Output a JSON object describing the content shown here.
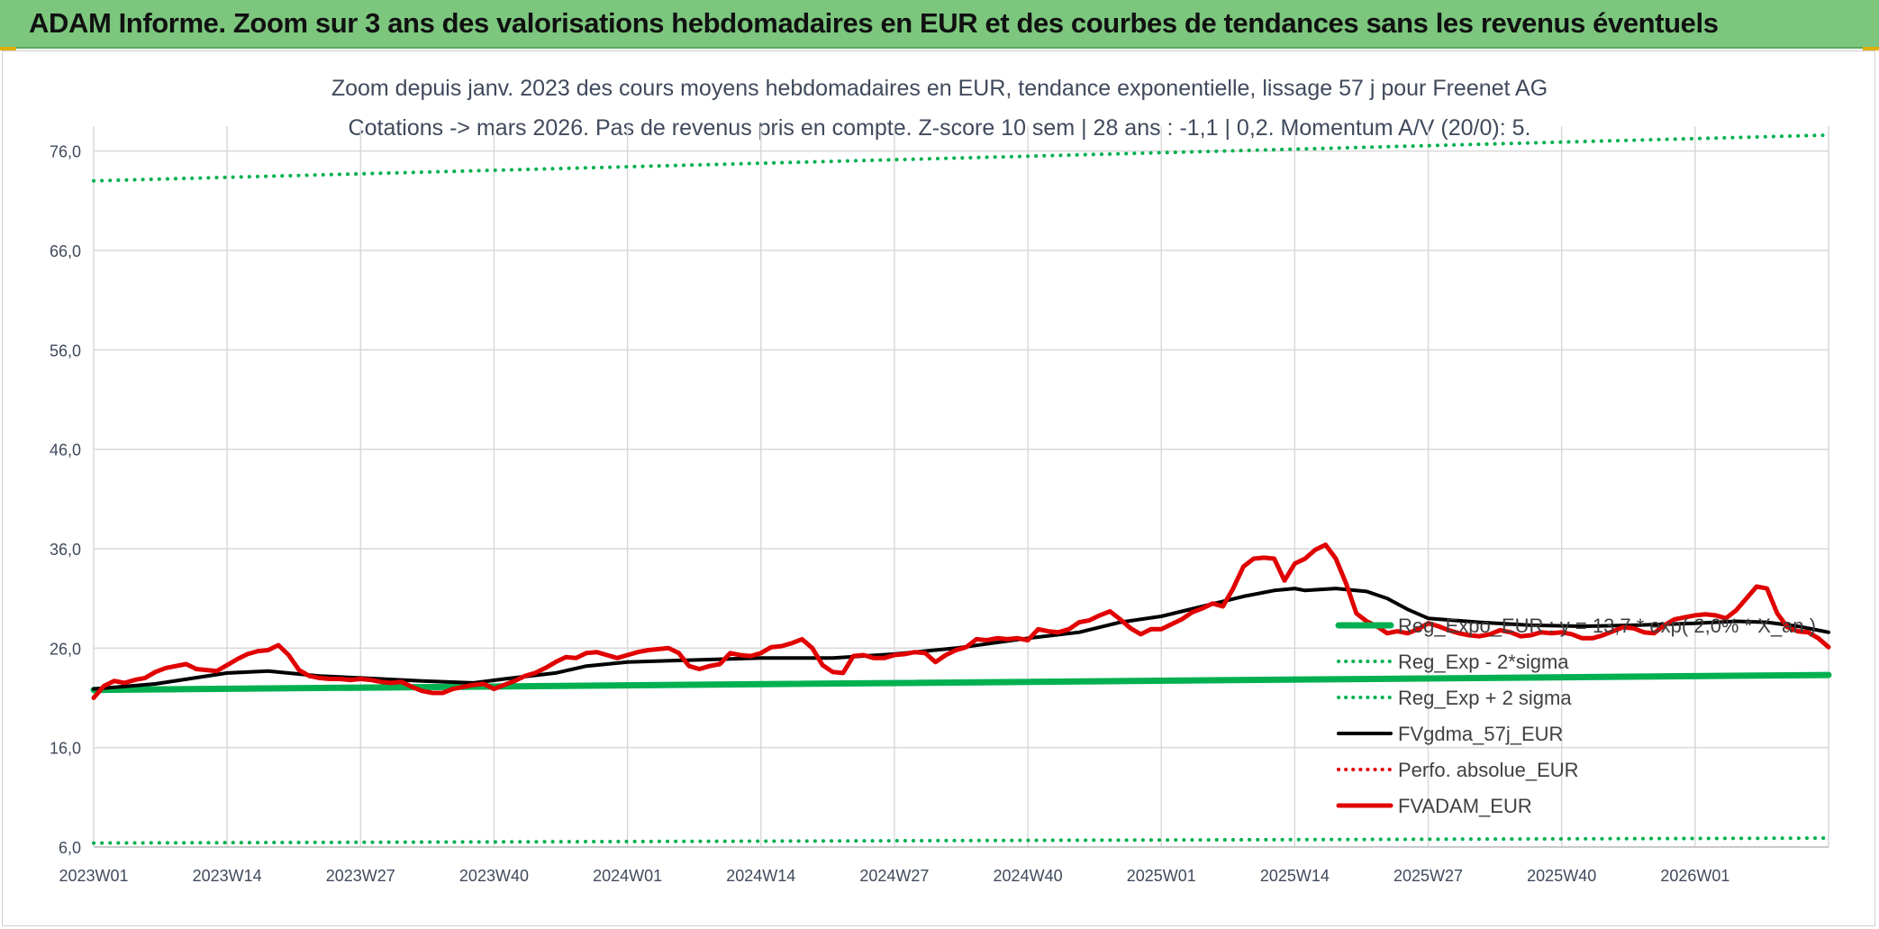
{
  "header": {
    "title": "ADAM Informe. Zoom sur 3 ans des valorisations hebdomadaires en EUR et des courbes de tendances sans les revenus éventuels"
  },
  "chart_data": {
    "type": "line",
    "title": "Zoom depuis janv. 2023 des cours moyens hebdomadaires en EUR, tendance exponentielle, lissage 57 j pour Freenet AG",
    "subtitle": "Cotations -> mars 2026. Pas de revenus pris en compte. Z-score 10 sem | 28 ans : -1,1 | 0,2. Momentum A/V (20/0): 5.",
    "xlabel": "",
    "ylabel": "",
    "ylim": [
      6.0,
      78.5
    ],
    "y_ticks": [
      "6,0",
      "16,0",
      "26,0",
      "36,0",
      "46,0",
      "56,0",
      "66,0",
      "76,0"
    ],
    "x_ticks": [
      "2023W01",
      "2023W14",
      "2023W27",
      "2023W40",
      "2024W01",
      "2024W14",
      "2024W27",
      "2024W40",
      "2025W01",
      "2025W14",
      "2025W27",
      "2025W40",
      "2026W01"
    ],
    "x_tick_index": [
      0,
      13,
      26,
      39,
      52,
      65,
      78,
      91,
      104,
      117,
      130,
      143,
      156
    ],
    "n_weeks": 170,
    "grid": true,
    "legend_position": "bottom-right, overlapping plot",
    "series": [
      {
        "name": "Reg_Expo_EUR : y = 13,7 * exp( 2,0% * X_an )",
        "color": "#00b050",
        "style": "solid",
        "width": 7,
        "points": [
          [
            0,
            21.8
          ],
          [
            169,
            23.3
          ]
        ]
      },
      {
        "name": "Reg_Exp - 2*sigma",
        "color": "#00b050",
        "style": "dotted",
        "width": 4,
        "points": [
          [
            0,
            6.4
          ],
          [
            169,
            6.9
          ]
        ]
      },
      {
        "name": "Reg_Exp + 2 sigma",
        "color": "#00b050",
        "style": "dotted",
        "width": 4,
        "points": [
          [
            0,
            73.0
          ],
          [
            169,
            77.6
          ]
        ]
      },
      {
        "name": "FVgdma_57j_EUR",
        "color": "#000000",
        "style": "solid",
        "width": 4,
        "points": [
          [
            0,
            21.9
          ],
          [
            6,
            22.4
          ],
          [
            13,
            23.5
          ],
          [
            17,
            23.7
          ],
          [
            22,
            23.2
          ],
          [
            26,
            23.0
          ],
          [
            32,
            22.7
          ],
          [
            37,
            22.5
          ],
          [
            40,
            22.9
          ],
          [
            45,
            23.5
          ],
          [
            48,
            24.2
          ],
          [
            52,
            24.6
          ],
          [
            58,
            24.8
          ],
          [
            65,
            25.0
          ],
          [
            72,
            25.0
          ],
          [
            78,
            25.4
          ],
          [
            84,
            26.0
          ],
          [
            91,
            27.0
          ],
          [
            96,
            27.6
          ],
          [
            100,
            28.6
          ],
          [
            104,
            29.2
          ],
          [
            108,
            30.2
          ],
          [
            112,
            31.2
          ],
          [
            115,
            31.8
          ],
          [
            117,
            32.0
          ],
          [
            118,
            31.8
          ],
          [
            121,
            32.0
          ],
          [
            124,
            31.7
          ],
          [
            126,
            31.0
          ],
          [
            128,
            29.9
          ],
          [
            130,
            29.0
          ],
          [
            135,
            28.6
          ],
          [
            140,
            28.3
          ],
          [
            145,
            28.2
          ],
          [
            150,
            28.3
          ],
          [
            156,
            28.5
          ],
          [
            160,
            28.7
          ],
          [
            163,
            28.6
          ],
          [
            166,
            28.2
          ],
          [
            169,
            27.6
          ]
        ]
      },
      {
        "name": "Perfo. absolue_EUR",
        "color": "#e00000",
        "style": "dotted",
        "width": 3,
        "points": []
      },
      {
        "name": "FVADAM_EUR",
        "color": "#e00000",
        "style": "solid",
        "width": 5,
        "points": [
          [
            0,
            21.0
          ],
          [
            1,
            22.2
          ],
          [
            2,
            22.7
          ],
          [
            3,
            22.5
          ],
          [
            4,
            22.8
          ],
          [
            5,
            23.0
          ],
          [
            6,
            23.6
          ],
          [
            7,
            24.0
          ],
          [
            8,
            24.2
          ],
          [
            9,
            24.4
          ],
          [
            10,
            23.9
          ],
          [
            11,
            23.8
          ],
          [
            12,
            23.7
          ],
          [
            13,
            24.3
          ],
          [
            14,
            24.9
          ],
          [
            15,
            25.4
          ],
          [
            16,
            25.7
          ],
          [
            17,
            25.8
          ],
          [
            18,
            26.3
          ],
          [
            19,
            25.3
          ],
          [
            20,
            23.8
          ],
          [
            21,
            23.2
          ],
          [
            22,
            23.0
          ],
          [
            23,
            22.9
          ],
          [
            24,
            22.9
          ],
          [
            25,
            22.8
          ],
          [
            26,
            22.9
          ],
          [
            27,
            22.8
          ],
          [
            28,
            22.6
          ],
          [
            29,
            22.5
          ],
          [
            30,
            22.6
          ],
          [
            31,
            22.1
          ],
          [
            32,
            21.7
          ],
          [
            33,
            21.5
          ],
          [
            34,
            21.5
          ],
          [
            35,
            21.9
          ],
          [
            36,
            22.1
          ],
          [
            37,
            22.3
          ],
          [
            38,
            22.4
          ],
          [
            39,
            21.9
          ],
          [
            40,
            22.3
          ],
          [
            41,
            22.7
          ],
          [
            42,
            23.2
          ],
          [
            43,
            23.5
          ],
          [
            44,
            24.0
          ],
          [
            45,
            24.6
          ],
          [
            46,
            25.1
          ],
          [
            47,
            25.0
          ],
          [
            48,
            25.5
          ],
          [
            49,
            25.6
          ],
          [
            50,
            25.3
          ],
          [
            51,
            25.0
          ],
          [
            52,
            25.3
          ],
          [
            53,
            25.6
          ],
          [
            54,
            25.8
          ],
          [
            55,
            25.9
          ],
          [
            56,
            26.0
          ],
          [
            57,
            25.5
          ],
          [
            58,
            24.2
          ],
          [
            59,
            23.9
          ],
          [
            60,
            24.2
          ],
          [
            61,
            24.4
          ],
          [
            62,
            25.5
          ],
          [
            63,
            25.3
          ],
          [
            64,
            25.2
          ],
          [
            65,
            25.5
          ],
          [
            66,
            26.1
          ],
          [
            67,
            26.2
          ],
          [
            68,
            26.5
          ],
          [
            69,
            26.9
          ],
          [
            70,
            26.0
          ],
          [
            71,
            24.3
          ],
          [
            72,
            23.6
          ],
          [
            73,
            23.5
          ],
          [
            74,
            25.2
          ],
          [
            75,
            25.3
          ],
          [
            76,
            25.0
          ],
          [
            77,
            25.0
          ],
          [
            78,
            25.3
          ],
          [
            79,
            25.4
          ],
          [
            80,
            25.6
          ],
          [
            81,
            25.5
          ],
          [
            82,
            24.6
          ],
          [
            83,
            25.3
          ],
          [
            84,
            25.8
          ],
          [
            85,
            26.1
          ],
          [
            86,
            26.9
          ],
          [
            87,
            26.8
          ],
          [
            88,
            27.0
          ],
          [
            89,
            26.9
          ],
          [
            90,
            27.0
          ],
          [
            91,
            26.8
          ],
          [
            92,
            27.9
          ],
          [
            93,
            27.7
          ],
          [
            94,
            27.6
          ],
          [
            95,
            27.9
          ],
          [
            96,
            28.6
          ],
          [
            97,
            28.8
          ],
          [
            98,
            29.3
          ],
          [
            99,
            29.7
          ],
          [
            100,
            28.9
          ],
          [
            101,
            28.0
          ],
          [
            102,
            27.4
          ],
          [
            103,
            27.9
          ],
          [
            104,
            27.9
          ],
          [
            105,
            28.4
          ],
          [
            106,
            28.9
          ],
          [
            107,
            29.6
          ],
          [
            108,
            30.0
          ],
          [
            109,
            30.5
          ],
          [
            110,
            30.2
          ],
          [
            111,
            32.0
          ],
          [
            112,
            34.2
          ],
          [
            113,
            35.0
          ],
          [
            114,
            35.1
          ],
          [
            115,
            35.0
          ],
          [
            116,
            32.8
          ],
          [
            117,
            34.5
          ],
          [
            118,
            35.0
          ],
          [
            119,
            35.9
          ],
          [
            120,
            36.4
          ],
          [
            121,
            35.0
          ],
          [
            122,
            32.5
          ],
          [
            123,
            29.5
          ],
          [
            124,
            28.7
          ],
          [
            125,
            28.2
          ],
          [
            126,
            27.5
          ],
          [
            127,
            27.7
          ],
          [
            128,
            27.5
          ],
          [
            129,
            27.9
          ],
          [
            130,
            28.5
          ],
          [
            131,
            28.2
          ],
          [
            132,
            27.8
          ],
          [
            133,
            27.5
          ],
          [
            134,
            27.3
          ],
          [
            135,
            27.2
          ],
          [
            136,
            27.4
          ],
          [
            137,
            27.8
          ],
          [
            138,
            27.6
          ],
          [
            139,
            27.2
          ],
          [
            140,
            27.3
          ],
          [
            141,
            27.6
          ],
          [
            142,
            27.5
          ],
          [
            143,
            27.6
          ],
          [
            144,
            27.4
          ],
          [
            145,
            27.0
          ],
          [
            146,
            27.0
          ],
          [
            147,
            27.3
          ],
          [
            148,
            27.7
          ],
          [
            149,
            28.1
          ],
          [
            150,
            28.0
          ],
          [
            151,
            27.6
          ],
          [
            152,
            27.5
          ],
          [
            153,
            28.3
          ],
          [
            154,
            28.9
          ],
          [
            155,
            29.1
          ],
          [
            156,
            29.3
          ],
          [
            157,
            29.4
          ],
          [
            158,
            29.3
          ],
          [
            159,
            29.0
          ],
          [
            160,
            29.8
          ],
          [
            161,
            31.0
          ],
          [
            162,
            32.2
          ],
          [
            163,
            32.0
          ],
          [
            164,
            29.5
          ],
          [
            165,
            28.1
          ],
          [
            166,
            27.7
          ],
          [
            167,
            27.6
          ],
          [
            168,
            27.0
          ],
          [
            169,
            26.1
          ]
        ]
      }
    ]
  }
}
